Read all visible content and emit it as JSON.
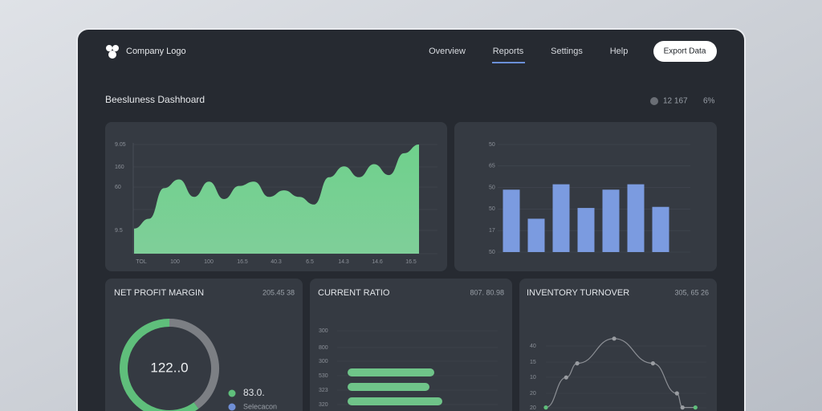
{
  "header": {
    "logo": "Company Logo",
    "nav": [
      "Overview",
      "Reports",
      "Settings",
      "Help"
    ],
    "active_nav": 1,
    "button": "Export Data"
  },
  "title": "Beesluness Dashhoard",
  "stats": [
    "12 167",
    "6%"
  ],
  "revenue_chart": {
    "type": "area",
    "color": "#6fcf8a",
    "ylim": [
      0,
      100
    ],
    "y_labels": [
      "9.05",
      "160",
      "60",
      "9.5"
    ],
    "x_labels": [
      "TOL",
      "100",
      "100",
      "16.5",
      "40.3",
      "6.5",
      "14.3",
      "14.6",
      "16.5"
    ],
    "values": [
      23,
      32,
      60,
      68,
      52,
      66,
      50,
      62,
      66,
      52,
      58,
      52,
      45,
      70,
      80,
      70,
      82,
      72,
      92,
      100
    ]
  },
  "bar_chart": {
    "type": "bar",
    "color": "#7b9be0",
    "ylim": [
      0,
      100
    ],
    "y_labels": [
      "50",
      "65",
      "50",
      "50",
      "17",
      "50"
    ],
    "values": [
      58,
      31,
      63,
      41,
      58,
      63,
      42
    ]
  },
  "net_profit_margin": {
    "type": "donut",
    "title": "NET PROFIT MARGIN",
    "figure": "205.45 38",
    "center": "122..0",
    "values": [
      60,
      40
    ],
    "colors": [
      "#5fbf7b",
      "#7c7f84"
    ],
    "legend": [
      {
        "name": "83.0.",
        "color": "#5fbf7b"
      },
      {
        "name": "Selecacon",
        "color": "#6f8fd6"
      }
    ]
  },
  "current_ratio": {
    "type": "hbar",
    "title": "CURRENT RATIO",
    "figure": "807. 80.98",
    "color": "#6fc489",
    "xlim": [
      0,
      100
    ],
    "y_labels": [
      "300",
      "800",
      "300",
      "530",
      "323",
      "320"
    ],
    "values": [
      54,
      51,
      59
    ]
  },
  "inventory_turnover": {
    "type": "line",
    "title": "INVENTORY TURNOVER",
    "figure": "305, 65 26",
    "color": "#8d9096",
    "y_labels": [
      "40",
      "15",
      "10",
      "20",
      "20"
    ],
    "x": [
      0,
      11,
      17,
      37,
      58,
      71,
      74,
      81
    ],
    "values": [
      2,
      19,
      27,
      41,
      27,
      10,
      2,
      2
    ],
    "point_colors": [
      "#5fbf7b",
      "#9a9da2",
      "#9a9da2",
      "#9a9da2",
      "#9a9da2",
      "#9a9da2",
      "#9a9da2",
      "#5fbf7b"
    ]
  }
}
